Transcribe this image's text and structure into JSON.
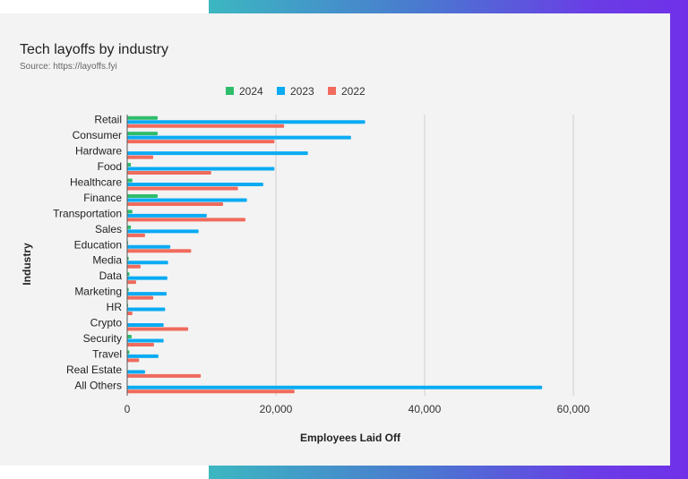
{
  "chart_data": {
    "type": "bar",
    "orientation": "horizontal",
    "title": "Tech layoffs by industry",
    "subtitle": "Source: https://layoffs.fyi",
    "xlabel": "Employees Laid Off",
    "ylabel": "Industry",
    "xlim": [
      0,
      65000
    ],
    "xticks": [
      0,
      20000,
      40000,
      60000
    ],
    "xtick_labels": [
      "0",
      "20,000",
      "40,000",
      "60,000"
    ],
    "grid": true,
    "legend": "top",
    "categories": [
      "Retail",
      "Consumer",
      "Hardware",
      "Food",
      "Healthcare",
      "Finance",
      "Transportation",
      "Sales",
      "Education",
      "Media",
      "Data",
      "Marketing",
      "HR",
      "Crypto",
      "Security",
      "Travel",
      "Real Estate",
      "All Others"
    ],
    "series": [
      {
        "name": "2024",
        "color": "#2ebd6b",
        "values": [
          4100,
          4100,
          0,
          500,
          700,
          4100,
          700,
          500,
          100,
          200,
          300,
          200,
          100,
          0,
          600,
          300,
          0,
          0
        ]
      },
      {
        "name": "2023",
        "color": "#0aabf3",
        "values": [
          32000,
          30100,
          24300,
          19800,
          18300,
          16100,
          10700,
          9600,
          5800,
          5500,
          5400,
          5300,
          5100,
          4900,
          4900,
          4200,
          2400,
          55800
        ]
      },
      {
        "name": "2022",
        "color": "#f06b5d",
        "values": [
          21100,
          19800,
          3500,
          11300,
          14900,
          12900,
          15900,
          2400,
          8600,
          1800,
          1200,
          3500,
          700,
          8200,
          3600,
          1600,
          9900,
          22500
        ]
      }
    ]
  },
  "colors": {
    "background": "#f3f3f3",
    "gradient_start": "#3cb7c1",
    "gradient_end": "#7030e8"
  }
}
